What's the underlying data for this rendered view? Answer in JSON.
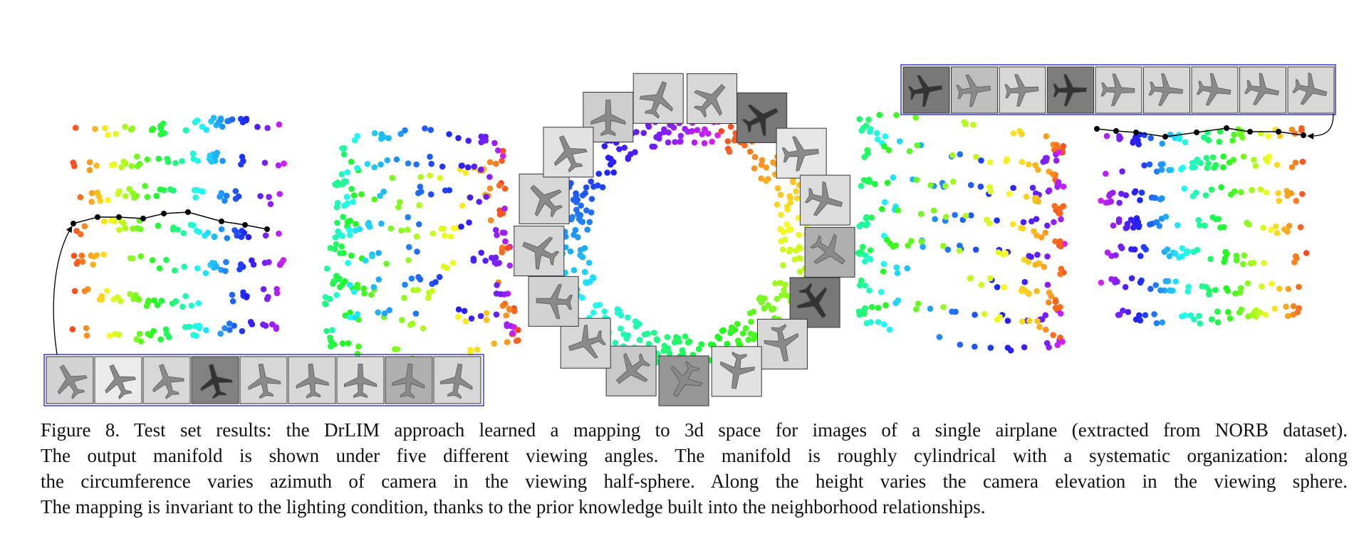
{
  "caption": {
    "lines": [
      "Figure 8. Test set results: the DrLIM approach learned a mapping to 3d space for images of a single airplane (extracted from NORB dataset).",
      "The output manifold is shown under five different viewing angles. The manifold is roughly cylindrical with a systematic organization: along",
      "the circumference varies azimuth of camera in the viewing half-sphere. Along the height varies the camera elevation in the viewing sphere.",
      "The mapping is invariant to the lighting condition, thanks to the prior knowledge built into the neighborhood relationships."
    ]
  }
}
